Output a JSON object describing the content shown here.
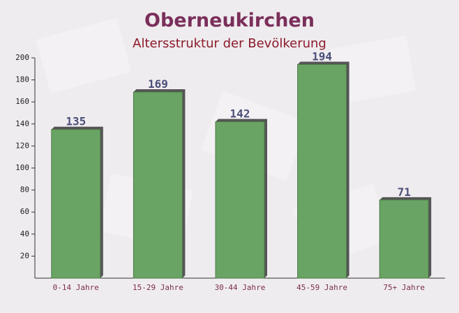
{
  "chart_data": {
    "type": "bar",
    "title": "Oberneukirchen",
    "subtitle": "Altersstruktur der Bevölkerung",
    "categories": [
      "0-14 Jahre",
      "15-29 Jahre",
      "30-44 Jahre",
      "45-59 Jahre",
      "75+ Jahre"
    ],
    "values": [
      135,
      169,
      142,
      194,
      71
    ],
    "color": "#6aa464",
    "ylim": [
      0,
      200
    ],
    "yticks": [
      20,
      40,
      60,
      80,
      100,
      120,
      140,
      160,
      180,
      200
    ]
  }
}
